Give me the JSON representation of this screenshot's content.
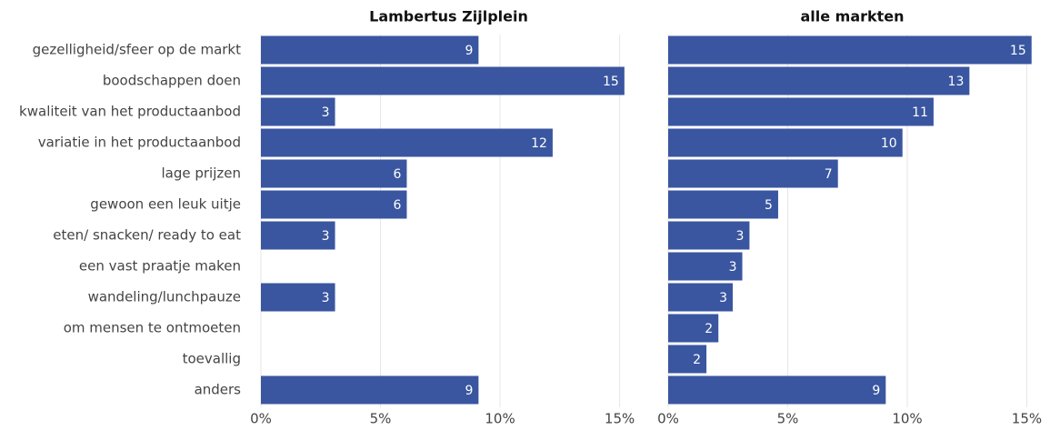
{
  "chart_data": [
    {
      "type": "bar",
      "orientation": "horizontal",
      "title": "Lambertus Zijlplein",
      "categories": [
        "gezelligheid/sfeer op de markt",
        "boodschappen doen",
        "kwaliteit van het productaanbod",
        "variatie in het productaanbod",
        "lage prijzen",
        "gewoon een leuk uitje",
        "eten/ snacken/ ready to eat",
        "een vast praatje maken",
        "wandeling/lunchpauze",
        "om mensen te ontmoeten",
        "toevallig",
        "anders"
      ],
      "values": [
        9.1,
        15.2,
        3.1,
        12.2,
        6.1,
        6.1,
        3.1,
        null,
        3.1,
        null,
        null,
        9.1
      ],
      "value_labels": [
        "9",
        "15",
        "3",
        "12",
        "6",
        "6",
        "3",
        null,
        "3",
        null,
        null,
        "9"
      ],
      "color": "#3a56a0",
      "xlim": [
        0,
        15.7
      ],
      "xticks": [
        {
          "value": 0,
          "label": "0%"
        },
        {
          "value": 5,
          "label": "5%"
        },
        {
          "value": 10,
          "label": "10%"
        },
        {
          "value": 15,
          "label": "15%"
        }
      ],
      "grid": true
    },
    {
      "type": "bar",
      "orientation": "horizontal",
      "title": "alle markten",
      "values": [
        15.2,
        12.6,
        11.1,
        9.8,
        7.1,
        4.6,
        3.4,
        3.1,
        2.7,
        2.1,
        1.6,
        9.1
      ],
      "value_labels": [
        "15",
        "13",
        "11",
        "10",
        "7",
        "5",
        "3",
        "3",
        "3",
        "2",
        "2",
        "9"
      ],
      "color": "#3a56a0",
      "xlim": [
        0,
        15.4
      ],
      "xticks": [
        {
          "value": 0,
          "label": "0%"
        },
        {
          "value": 5,
          "label": "5%"
        },
        {
          "value": 10,
          "label": "10%"
        },
        {
          "value": 15,
          "label": "15%"
        }
      ],
      "grid": true
    }
  ]
}
